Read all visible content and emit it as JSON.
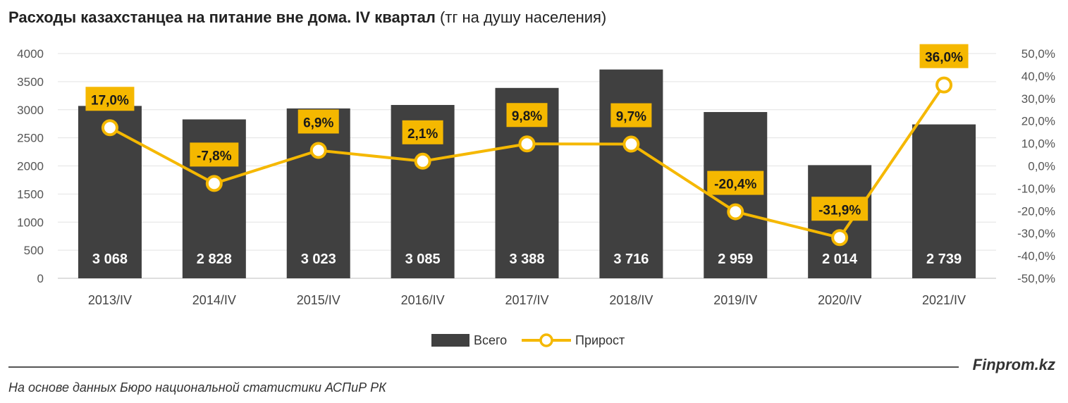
{
  "title": {
    "bold": "Расходы казахстанцеа на питание вне дома. IV квартал",
    "normal": "(тг на душу населения)"
  },
  "chart_data": {
    "type": "bar",
    "categories": [
      "2013/IV",
      "2014/IV",
      "2015/IV",
      "2016/IV",
      "2017/IV",
      "2018/IV",
      "2019/IV",
      "2020/IV",
      "2021/IV"
    ],
    "series": [
      {
        "name": "Всего",
        "type": "bar",
        "axis": "left",
        "values": [
          3068,
          2828,
          3023,
          3085,
          3388,
          3716,
          2959,
          2014,
          2739
        ],
        "labels": [
          "3 068",
          "2 828",
          "3 023",
          "3 085",
          "3 388",
          "3 716",
          "2 959",
          "2 014",
          "2 739"
        ],
        "color": "#404040"
      },
      {
        "name": "Прирост",
        "type": "line",
        "axis": "right",
        "values": [
          17.0,
          -7.8,
          6.9,
          2.1,
          9.8,
          9.7,
          -20.4,
          -31.9,
          36.0
        ],
        "labels": [
          "17,0%",
          "-7,8%",
          "6,9%",
          "2,1%",
          "9,8%",
          "9,7%",
          "-20,4%",
          "-31,9%",
          "36,0%"
        ],
        "color": "#F5B800"
      }
    ],
    "y_left": {
      "ylim": [
        0,
        4000
      ],
      "ticks": [
        0,
        500,
        1000,
        1500,
        2000,
        2500,
        3000,
        3500,
        4000
      ],
      "tick_labels": [
        "0",
        "500",
        "1000",
        "1500",
        "2000",
        "2500",
        "3000",
        "3500",
        "4000"
      ]
    },
    "y_right": {
      "ylim": [
        -50,
        50
      ],
      "ticks": [
        -50,
        -40,
        -30,
        -20,
        -10,
        0,
        10,
        20,
        30,
        40,
        50
      ],
      "tick_labels": [
        "-50,0%",
        "-40,0%",
        "-30,0%",
        "-20,0%",
        "-10,0%",
        "0,0%",
        "10,0%",
        "20,0%",
        "30,0%",
        "40,0%",
        "50,0%"
      ]
    },
    "grid": true,
    "legend": "bottom-center"
  },
  "footer": {
    "brand": "Finprom.kz",
    "source": "На основе данных Бюро национальной статистики АСПиР РК"
  }
}
